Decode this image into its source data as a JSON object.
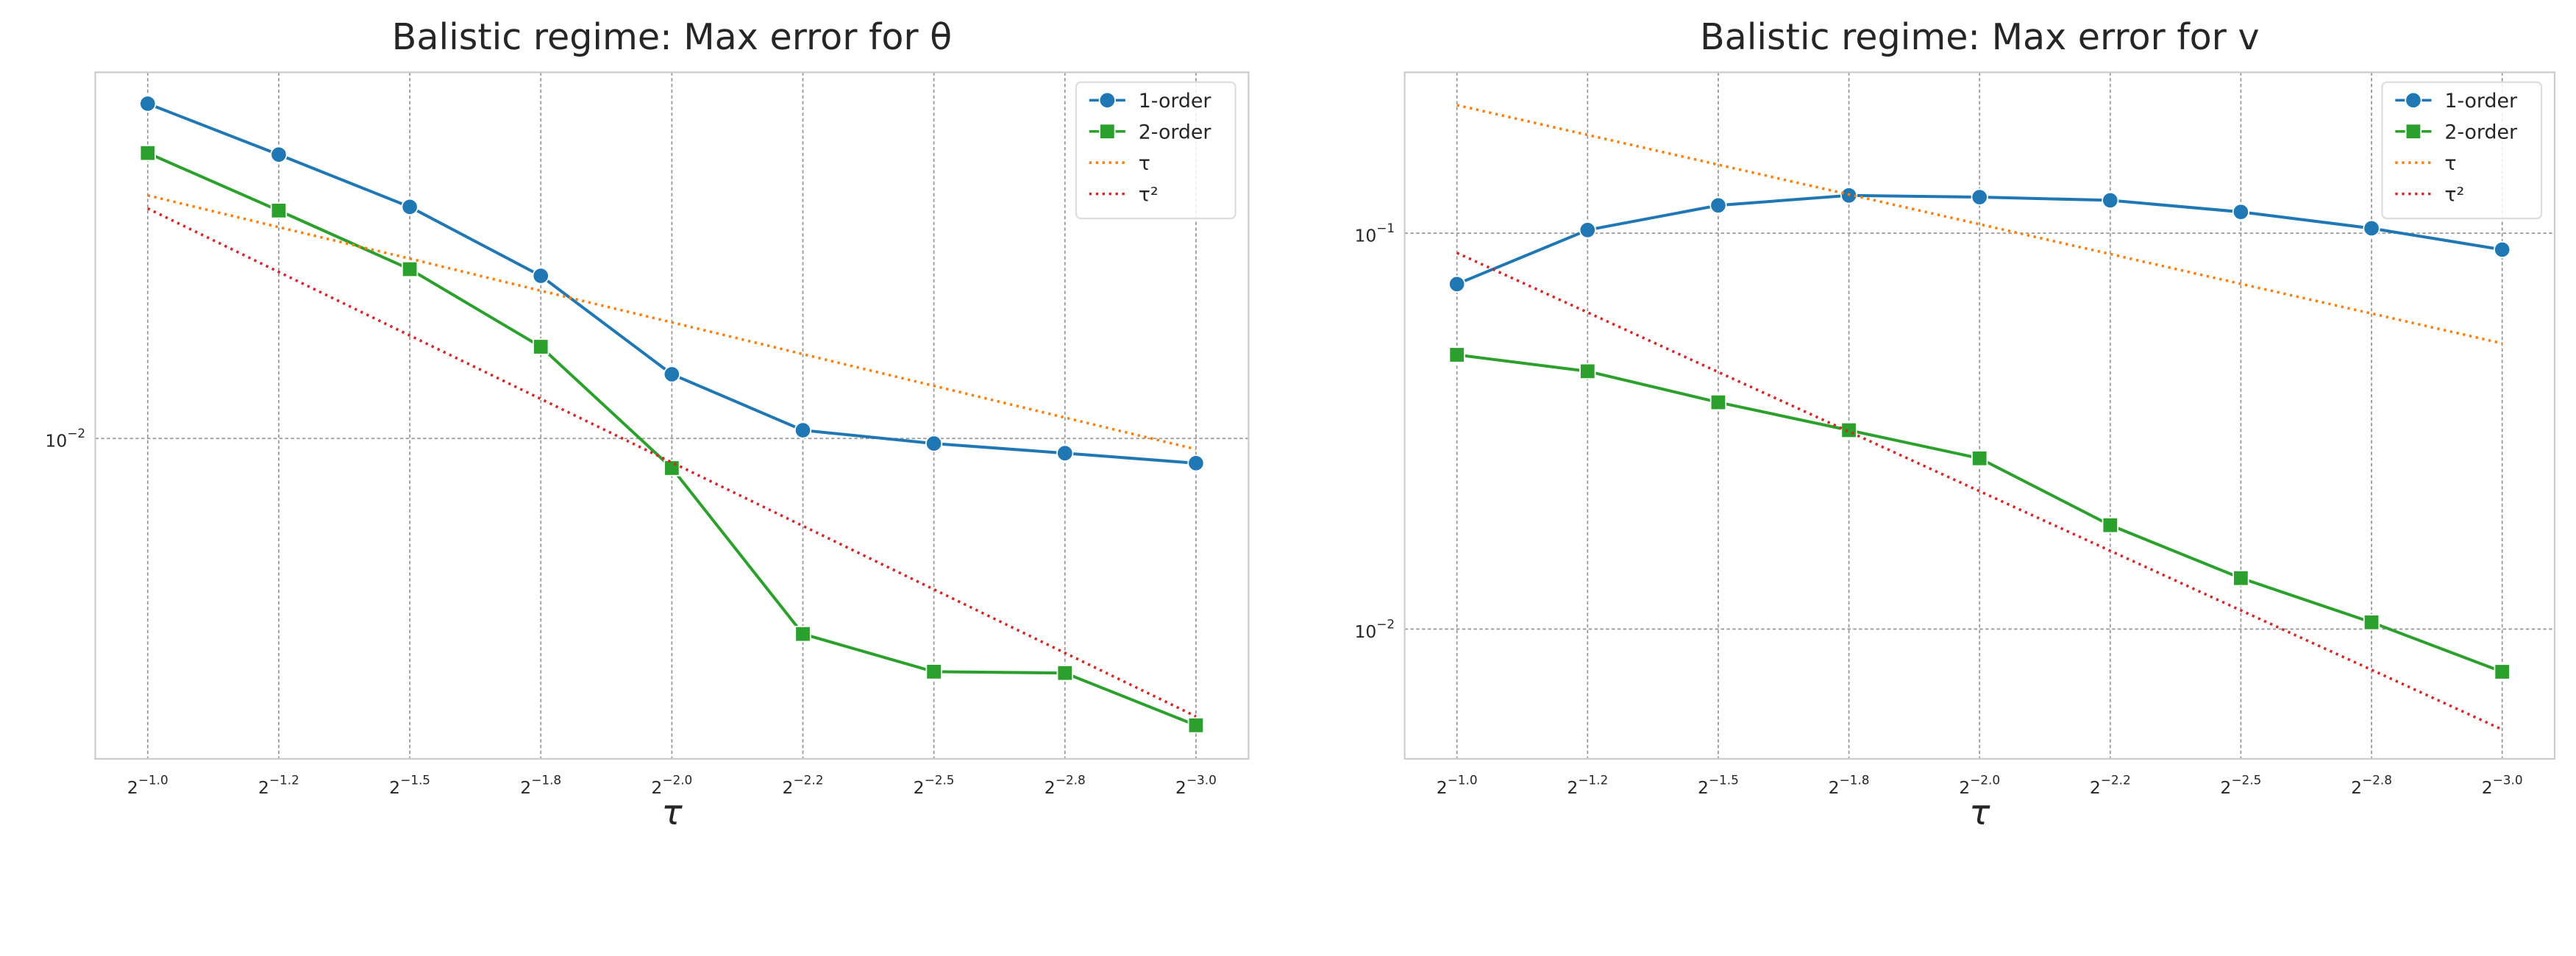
{
  "chart_data": [
    {
      "type": "line",
      "title": "Balistic regime: Max error for θ",
      "xlabel": "τ",
      "xscale": "log",
      "yscale": "log",
      "grid": true,
      "legend": "upper right",
      "x": [
        0.5,
        0.42045,
        0.35355,
        0.2973,
        0.25,
        0.21022,
        0.17678,
        0.14865,
        0.125
      ],
      "xlim": [
        0.5359,
        0.1166
      ],
      "xticks": [
        {
          "value": 0.5,
          "label": "2",
          "exponent": "−1.0"
        },
        {
          "value": 0.42045,
          "label": "2",
          "exponent": "−1.2"
        },
        {
          "value": 0.35355,
          "label": "2",
          "exponent": "−1.5"
        },
        {
          "value": 0.2973,
          "label": "2",
          "exponent": "−1.8"
        },
        {
          "value": 0.25,
          "label": "2",
          "exponent": "−2.0"
        },
        {
          "value": 0.21022,
          "label": "2",
          "exponent": "−2.2"
        },
        {
          "value": 0.17678,
          "label": "2",
          "exponent": "−2.5"
        },
        {
          "value": 0.14865,
          "label": "2",
          "exponent": "−2.8"
        },
        {
          "value": 0.125,
          "label": "2",
          "exponent": "−3.0"
        }
      ],
      "ylim": [
        0.00174,
        0.0738
      ],
      "yticks": [
        {
          "value": 0.01,
          "label": "10",
          "exponent": "−2"
        }
      ],
      "series": [
        {
          "name": "1-order",
          "color": "#1f77b4",
          "marker": "circle",
          "linestyle": "solid",
          "values": [
            0.0622,
            0.0471,
            0.0354,
            0.0243,
            0.0142,
            0.01046,
            0.00973,
            0.00923,
            0.00874
          ]
        },
        {
          "name": "2-order",
          "color": "#2ca02c",
          "marker": "square",
          "linestyle": "solid",
          "values": [
            0.0475,
            0.0347,
            0.0252,
            0.0165,
            0.00851,
            0.00344,
            0.0028,
            0.00278,
            0.00209
          ]
        },
        {
          "name": "τ",
          "color": "#ff7f0e",
          "linestyle": "dotted",
          "values": [
            0.0377,
            0.0317,
            0.0267,
            0.0224,
            0.01885,
            0.01585,
            0.01333,
            0.01121,
            0.00943
          ]
        },
        {
          "name": "τ²",
          "color": "#d62728",
          "linestyle": "dotted",
          "values": [
            0.0351,
            0.02482,
            0.01755,
            0.01241,
            0.008775,
            0.006205,
            0.004388,
            0.003102,
            0.002194
          ]
        }
      ]
    },
    {
      "type": "line",
      "title": "Balistic regime: Max error for v",
      "xlabel": "τ",
      "xscale": "log",
      "yscale": "log",
      "grid": true,
      "legend": "upper right",
      "x": [
        0.5,
        0.42045,
        0.35355,
        0.2973,
        0.25,
        0.21022,
        0.17678,
        0.14865,
        0.125
      ],
      "xlim": [
        0.5359,
        0.1166
      ],
      "xticks": [
        {
          "value": 0.5,
          "label": "2",
          "exponent": "−1.0"
        },
        {
          "value": 0.42045,
          "label": "2",
          "exponent": "−1.2"
        },
        {
          "value": 0.35355,
          "label": "2",
          "exponent": "−1.5"
        },
        {
          "value": 0.2973,
          "label": "2",
          "exponent": "−1.8"
        },
        {
          "value": 0.25,
          "label": "2",
          "exponent": "−2.0"
        },
        {
          "value": 0.21022,
          "label": "2",
          "exponent": "−2.2"
        },
        {
          "value": 0.17678,
          "label": "2",
          "exponent": "−2.5"
        },
        {
          "value": 0.14865,
          "label": "2",
          "exponent": "−2.8"
        },
        {
          "value": 0.125,
          "label": "2",
          "exponent": "−3.0"
        }
      ],
      "ylim": [
        0.0047,
        0.255
      ],
      "yticks": [
        {
          "value": 0.01,
          "label": "10",
          "exponent": "−2"
        },
        {
          "value": 0.1,
          "label": "10",
          "exponent": "−1"
        }
      ],
      "series": [
        {
          "name": "1-order",
          "color": "#1f77b4",
          "marker": "circle",
          "linestyle": "solid",
          "values": [
            0.0744,
            0.1019,
            0.1176,
            0.1246,
            0.1234,
            0.1211,
            0.1132,
            0.1029,
            0.0909
          ]
        },
        {
          "name": "2-order",
          "color": "#2ca02c",
          "marker": "square",
          "linestyle": "solid",
          "values": [
            0.0493,
            0.0448,
            0.0374,
            0.0318,
            0.027,
            0.0183,
            0.01345,
            0.0104,
            0.0078
          ]
        },
        {
          "name": "τ",
          "color": "#ff7f0e",
          "linestyle": "dotted",
          "values": [
            0.2107,
            0.1772,
            0.149,
            0.1253,
            0.1054,
            0.0886,
            0.0745,
            0.0627,
            0.0527
          ]
        },
        {
          "name": "τ²",
          "color": "#d62728",
          "linestyle": "dotted",
          "values": [
            0.0892,
            0.0631,
            0.0446,
            0.03154,
            0.0223,
            0.01577,
            0.01115,
            0.00789,
            0.005575
          ]
        }
      ]
    }
  ]
}
